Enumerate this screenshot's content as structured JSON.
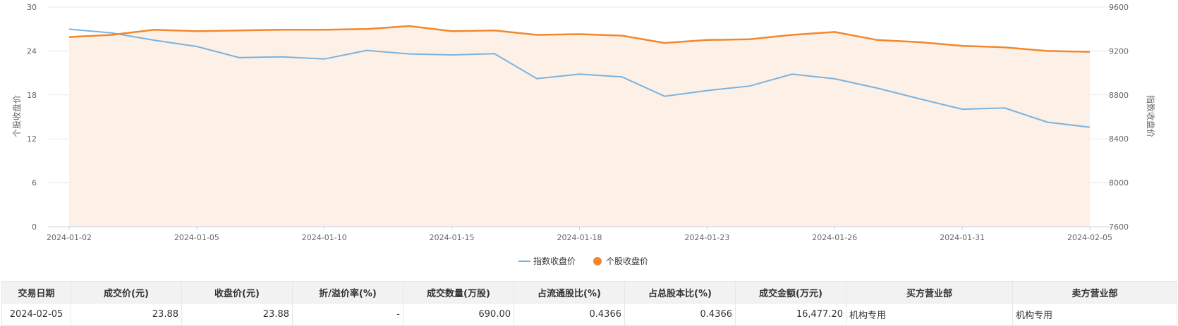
{
  "chart_data": {
    "type": "line",
    "x": [
      "2024-01-02",
      "2024-01-03",
      "2024-01-04",
      "2024-01-05",
      "2024-01-08",
      "2024-01-09",
      "2024-01-10",
      "2024-01-11",
      "2024-01-12",
      "2024-01-15",
      "2024-01-16",
      "2024-01-17",
      "2024-01-18",
      "2024-01-19",
      "2024-01-22",
      "2024-01-23",
      "2024-01-24",
      "2024-01-25",
      "2024-01-26",
      "2024-01-29",
      "2024-01-30",
      "2024-01-31",
      "2024-02-01",
      "2024-02-02",
      "2024-02-05"
    ],
    "xticks": [
      "2024-01-02",
      "2024-01-05",
      "2024-01-10",
      "2024-01-15",
      "2024-01-18",
      "2024-01-23",
      "2024-01-26",
      "2024-01-31",
      "2024-02-05"
    ],
    "series": [
      {
        "name": "指数收盘价",
        "axis": "right",
        "color": "#7ab3df",
        "values": [
          9399,
          9364,
          9298,
          9241,
          9139,
          9147,
          9127,
          9205,
          9173,
          9164,
          9175,
          8948,
          8990,
          8964,
          8788,
          8840,
          8881,
          8989,
          8947,
          8862,
          8764,
          8670,
          8681,
          8552,
          8506
        ]
      },
      {
        "name": "个股收盘价",
        "axis": "left",
        "color": "#f3872b",
        "values": [
          25.9,
          26.2,
          26.9,
          26.7,
          26.8,
          26.9,
          26.9,
          27.0,
          27.4,
          26.7,
          26.8,
          26.2,
          26.3,
          26.1,
          25.1,
          25.5,
          25.6,
          26.2,
          26.6,
          25.5,
          25.2,
          24.7,
          24.5,
          24.0,
          23.88
        ]
      }
    ],
    "ylabel": "个股收盘价",
    "ylim": [
      0,
      30
    ],
    "yticks": [
      0,
      6,
      12,
      18,
      24,
      30
    ],
    "y2label": "指数收盘价",
    "y2lim": [
      7600,
      9600
    ],
    "y2ticks": [
      7600,
      8000,
      8400,
      8800,
      9200,
      9600
    ],
    "area_fill_color": "#fdf0e6",
    "grid": true,
    "legend_position": "bottom"
  },
  "table": {
    "headers": [
      "交易日期",
      "成交价(元)",
      "收盘价(元)",
      "折/溢价率(%)",
      "成交数量(万股)",
      "占流通股比(%)",
      "占总股本比(%)",
      "成交金额(万元)",
      "买方营业部",
      "卖方营业部"
    ],
    "rows": [
      [
        "2024-02-05",
        "23.88",
        "23.88",
        "-",
        "690.00",
        "0.4366",
        "0.4366",
        "16,477.20",
        "机构专用",
        "机构专用"
      ]
    ]
  }
}
